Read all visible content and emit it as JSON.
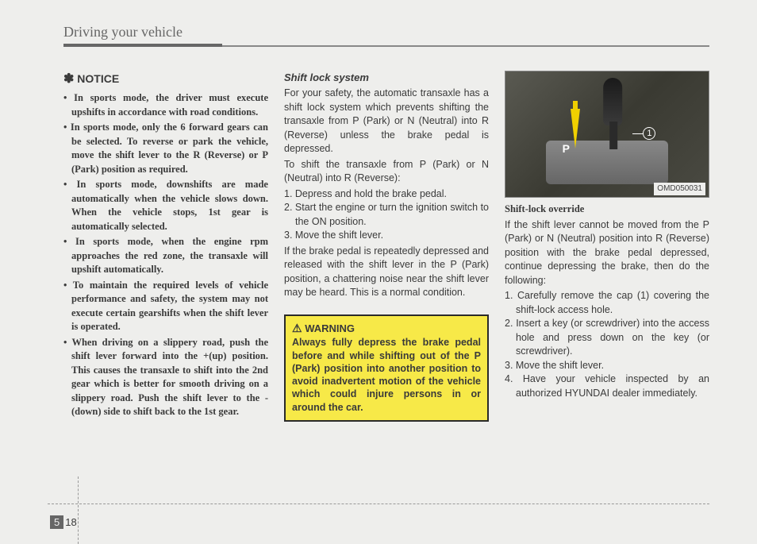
{
  "header": {
    "title": "Driving your vehicle"
  },
  "col1": {
    "notice_label": "NOTICE",
    "bullets": [
      "In sports mode, the driver must execute upshifts in accordance with road conditions.",
      "In sports mode, only the 6 forward gears can be selected. To reverse or park the vehicle, move the shift lever to the R (Reverse) or P (Park) position as required.",
      "In sports mode, downshifts are made automatically when the vehicle slows down. When the vehicle stops, 1st gear is automatically selected.",
      "In sports mode, when the engine rpm approaches the red zone, the transaxle will upshift automatically.",
      "To maintain the required levels of vehicle performance and safety, the system may not execute certain gearshifts when the shift lever is operated.",
      "When driving on a slippery road, push the shift lever forward into the +(up) position. This causes the transaxle to shift into the 2nd gear which is better for smooth driving on a slippery road. Push the shift lever to the -(down) side to shift back to the 1st gear."
    ]
  },
  "col2": {
    "section_title": "Shift lock system",
    "p1": "For your safety, the automatic transaxle has a shift lock system which prevents shifting the transaxle from P (Park) or N (Neutral) into R (Reverse) unless the brake pedal is depressed.",
    "p2": "To shift the transaxle from P (Park) or N (Neutral) into R (Reverse):",
    "steps": [
      "1. Depress and hold the brake pedal.",
      "2. Start the engine or turn the ignition switch to the ON position.",
      "3. Move the shift lever."
    ],
    "p3": "If the brake pedal is repeatedly depressed and released with the shift lever in the P (Park) position, a chattering noise near the shift lever may be heard. This is a normal condition.",
    "warning_label": "WARNING",
    "warning_text": "Always fully depress the brake pedal before and while shifting out of the P (Park) position into another position to avoid inadvertent motion of the vehicle which could injure persons in or around the car."
  },
  "col3": {
    "fig_code": "OMD050031",
    "fig_p_label": "P",
    "fig_marker": "1",
    "section_title": "Shift-lock override",
    "p1": "If the shift lever cannot be moved from the P (Park) or N (Neutral) position into R (Reverse) position with the brake pedal depressed, continue depressing the brake, then do the following:",
    "steps": [
      "1. Carefully remove the cap (1) covering the shift-lock access hole.",
      "2. Insert a key (or screwdriver) into the access hole and press down on the key (or screwdriver).",
      "3. Move the shift lever.",
      "4. Have your vehicle inspected by an authorized HYUNDAI dealer immediately."
    ]
  },
  "footer": {
    "chapter": "5",
    "page": "18"
  }
}
